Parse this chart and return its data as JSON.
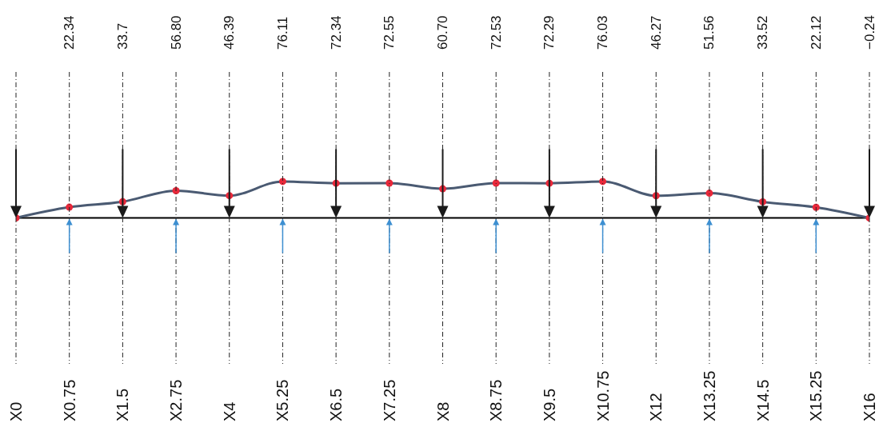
{
  "chart_data": {
    "type": "line",
    "categories": [
      "X0",
      "X0.75",
      "X1.5",
      "X2.75",
      "X4",
      "X5.25",
      "X6.5",
      "X7.25",
      "X8",
      "X8.75",
      "X9.5",
      "X10.75",
      "X12",
      "X13.25",
      "X14.5",
      "X15.25",
      "X16"
    ],
    "series": [
      {
        "color": "#4a5a72",
        "values": [
          0,
          22.34,
          33.7,
          56.8,
          46.39,
          76.11,
          72.34,
          72.55,
          60.7,
          72.53,
          72.29,
          76.03,
          46.27,
          51.56,
          33.52,
          22.12,
          -0.24
        ],
        "value_labels": [
          null,
          "22.34",
          "33.7",
          "56.80",
          "46.39",
          "76.11",
          "72.34",
          "72.55",
          "60.70",
          "72.53",
          "72.29",
          "76.03",
          "46.27",
          "51.56",
          "33.52",
          "22.12",
          "−0.24"
        ]
      }
    ],
    "ref_lines": [
      {
        "axis": "y",
        "value": 0,
        "color": "#000000"
      }
    ],
    "grid": "x",
    "marker": "circle",
    "line_style": "solid",
    "tick_labels": "x"
  }
}
